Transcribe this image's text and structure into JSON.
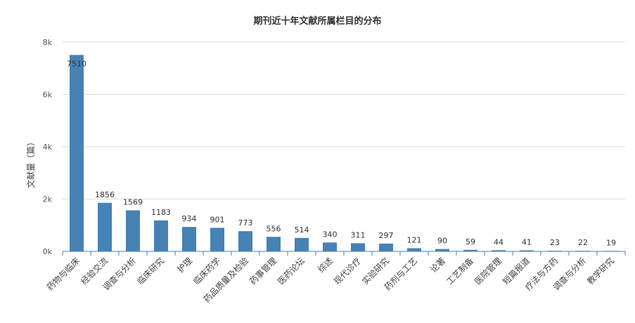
{
  "chart_data": {
    "type": "bar",
    "title": "期刊近十年文献所属栏目的分布",
    "xlabel": "",
    "ylabel": "文献量（篇）",
    "ylim": [
      0,
      8000
    ],
    "yticks": [
      0,
      2000,
      4000,
      6000,
      8000
    ],
    "ytick_labels": [
      "0k",
      "2k",
      "4k",
      "6k",
      "8k"
    ],
    "grid": true,
    "bar_color": "#4682b4",
    "categories": [
      "药物与临床",
      "经验交流",
      "调查与分析",
      "临床研究",
      "护理",
      "临床药学",
      "药品质量及检验",
      "药事管理",
      "医药论坛",
      "综述",
      "现代诊疗",
      "实验研究",
      "药剂与工艺",
      "论著",
      "工艺制备",
      "医院管理",
      "短篇报道",
      "疗法与方药",
      "调查与分析",
      "教学研究"
    ],
    "values": [
      7510,
      1856,
      1569,
      1183,
      934,
      901,
      773,
      556,
      514,
      340,
      311,
      297,
      121,
      90,
      59,
      44,
      41,
      23,
      22,
      19
    ]
  }
}
